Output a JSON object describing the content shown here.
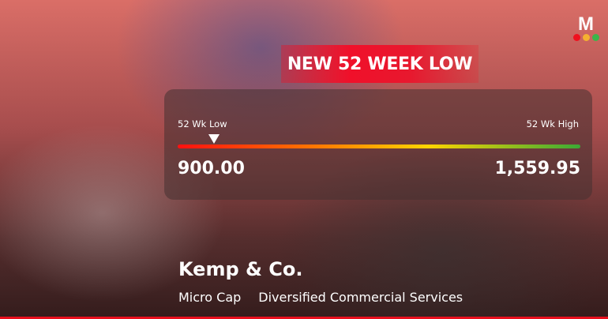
{
  "logo": {
    "letter": "M",
    "dots": [
      "#f0101e",
      "#f5b030",
      "#3cb54a"
    ]
  },
  "badge": {
    "text": "NEW 52 WEEK LOW"
  },
  "range": {
    "low_label": "52 Wk Low",
    "high_label": "52 Wk High",
    "low_value": "900.00",
    "high_value": "1,559.95",
    "current_position_fraction": 0.09
  },
  "company": {
    "name": "Kemp & Co.",
    "cap": "Micro Cap",
    "sector": "Diversified Commercial Services"
  },
  "colors": {
    "accent": "#e8101e"
  }
}
